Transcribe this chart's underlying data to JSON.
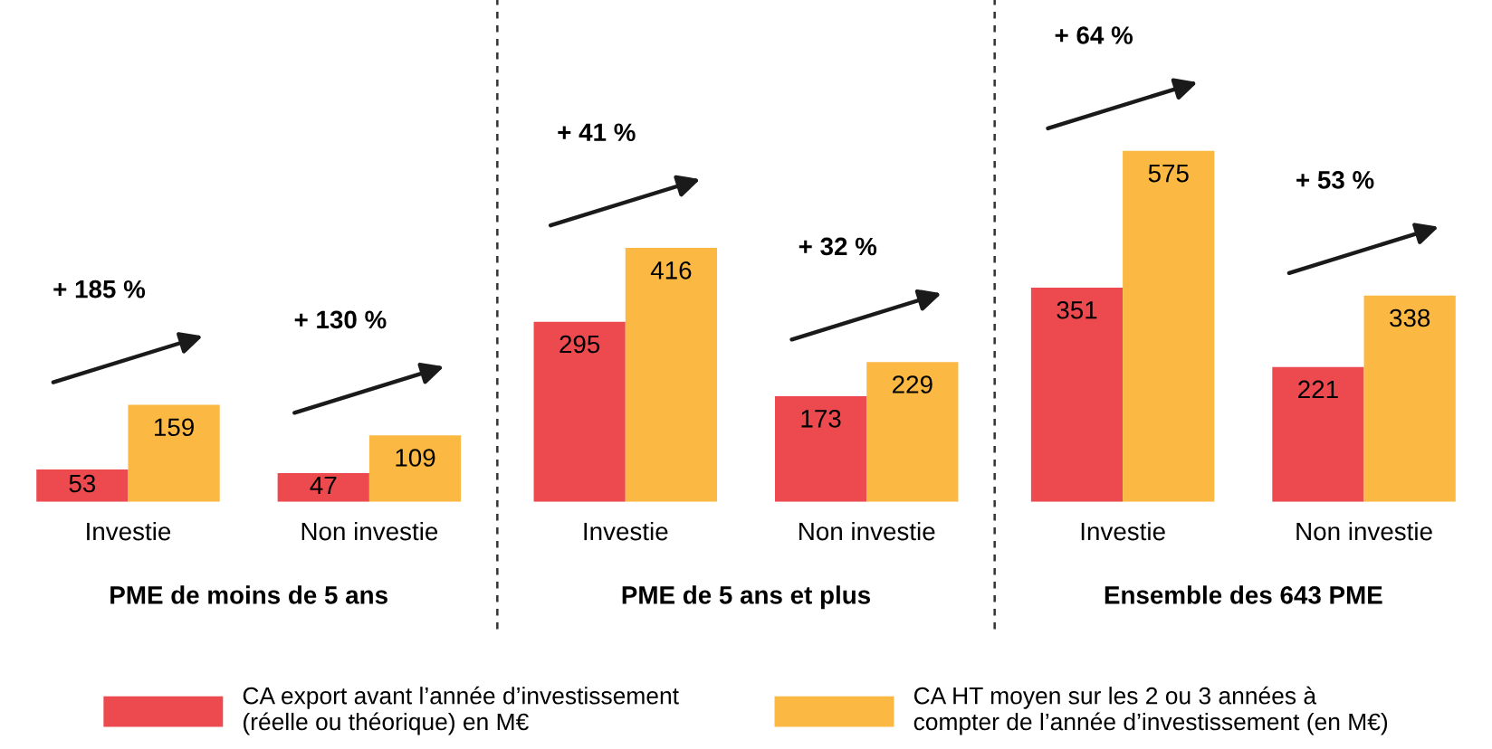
{
  "chart_data": [
    {
      "type": "bar",
      "xlabel": "PME de moins de 5 ans",
      "categories": [
        "Investie",
        "Non investie"
      ],
      "series": [
        {
          "name": "CA export avant l’année d’investissement\n(réelle ou théorique) en M€",
          "color": "#ec4a4f",
          "values": [
            53,
            47
          ]
        },
        {
          "name": "CA HT moyen sur les 2 ou 3 années à\ncompter de l’année d’investissement (en M€)",
          "color": "#fbb843",
          "values": [
            159,
            109
          ]
        }
      ],
      "annotations": [
        "+ 185 %",
        "+ 130 %"
      ],
      "data_labels": true,
      "legend": "bottom"
    },
    {
      "type": "bar",
      "xlabel": "PME de 5 ans et plus",
      "categories": [
        "Investie",
        "Non investie"
      ],
      "series": [
        {
          "color": "#ec4a4f",
          "values": [
            295,
            173
          ]
        },
        {
          "color": "#fbb843",
          "values": [
            416,
            229
          ]
        }
      ],
      "annotations": [
        "+ 41 %",
        "+ 32 %"
      ],
      "data_labels": true,
      "legend": false
    },
    {
      "type": "bar",
      "xlabel": "Ensemble des 643 PME",
      "categories": [
        "Investie",
        "Non investie"
      ],
      "series": [
        {
          "color": "#ec4a4f",
          "values": [
            351,
            221
          ]
        },
        {
          "color": "#fbb843",
          "values": [
            575,
            338
          ]
        }
      ],
      "annotations": [
        "+ 64 %",
        "+ 53 %"
      ],
      "data_labels": true,
      "legend": false
    }
  ]
}
